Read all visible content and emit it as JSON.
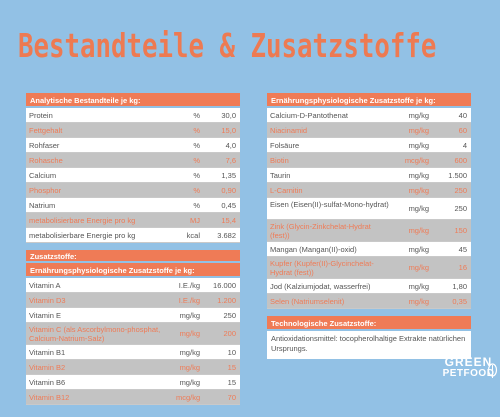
{
  "title": "Bestandteile & Zusatzstoffe",
  "left": {
    "analytical_header": "Analytische Bestandteile je kg:",
    "analytical_rows": [
      {
        "name": "Protein",
        "unit": "%",
        "value": "30,0"
      },
      {
        "name": "Fettgehalt",
        "unit": "%",
        "value": "15,0"
      },
      {
        "name": "Rohfaser",
        "unit": "%",
        "value": "4,0"
      },
      {
        "name": "Rohasche",
        "unit": "%",
        "value": "7,6"
      },
      {
        "name": "Calcium",
        "unit": "%",
        "value": "1,35"
      },
      {
        "name": "Phosphor",
        "unit": "%",
        "value": "0,90"
      },
      {
        "name": "Natrium",
        "unit": "%",
        "value": "0,45"
      },
      {
        "name": "metabolisierbare Energie pro kg",
        "unit": "MJ",
        "value": "15,4"
      },
      {
        "name": "metabolisierbare Energie pro kg",
        "unit": "kcal",
        "value": "3.682"
      }
    ],
    "additives_header": "Zusatzstoffe:",
    "nutrition_header": "Ernährungsphysiologische Zusatzstoffe je kg:",
    "nutrition_rows": [
      {
        "name": "Vitamin A",
        "unit": "I.E./kg",
        "value": "16.000"
      },
      {
        "name": "Vitamin D3",
        "unit": "I.E./kg",
        "value": "1.200"
      },
      {
        "name": "Vitamin E",
        "unit": "mg/kg",
        "value": "250"
      },
      {
        "name": "Vitamin C (als Ascorbylmono-phosphat, Calcium-Natrium-Salz)",
        "unit": "mg/kg",
        "value": "200"
      },
      {
        "name": "Vitamin B1",
        "unit": "mg/kg",
        "value": "10"
      },
      {
        "name": "Vitamin B2",
        "unit": "mg/kg",
        "value": "15"
      },
      {
        "name": "Vitamin B6",
        "unit": "mg/kg",
        "value": "15"
      },
      {
        "name": "Vitamin B12",
        "unit": "mcg/kg",
        "value": "70"
      }
    ]
  },
  "right": {
    "nutrition_header": "Ernährungsphysiologische Zusatzstoffe je kg:",
    "nutrition_rows": [
      {
        "name": "Calcium-D-Pantothenat",
        "unit": "mg/kg",
        "value": "40"
      },
      {
        "name": "Niacinamid",
        "unit": "mg/kg",
        "value": "60"
      },
      {
        "name": "Folsäure",
        "unit": "mg/kg",
        "value": "4"
      },
      {
        "name": "Biotin",
        "unit": "mcg/kg",
        "value": "600"
      },
      {
        "name": "Taurin",
        "unit": "mg/kg",
        "value": "1.500"
      },
      {
        "name": "L-Carnitin",
        "unit": "mg/kg",
        "value": "250"
      },
      {
        "name": "Eisen (Eisen(II)-sulfat-Mono-hydrat)",
        "unit": "mg/kg",
        "value": "250"
      },
      {
        "name": "Zink (Glycin-Zinkchelat-Hydrat (fest))",
        "unit": "mg/kg",
        "value": "150"
      },
      {
        "name": "Mangan (Mangan(II)-oxid)",
        "unit": "mg/kg",
        "value": "45"
      },
      {
        "name": "Kupfer (Kupfer(II)-Glycinchelat-Hydrat (fest))",
        "unit": "mg/kg",
        "value": "16"
      },
      {
        "name": "Jod (Kalziumjodat, wasserfrei)",
        "unit": "mg/kg",
        "value": "1,80"
      },
      {
        "name": "Selen (Natriumselenit)",
        "unit": "mg/kg",
        "value": "0,35"
      }
    ],
    "tech_header": "Technologische Zusatzstoffe:",
    "tech_text": "Antioxidationsmittel: tocopherolhaltige Extrakte natürlichen Ursprungs."
  },
  "logo": {
    "line1": "GREEN",
    "line2": "PETFOOD"
  }
}
